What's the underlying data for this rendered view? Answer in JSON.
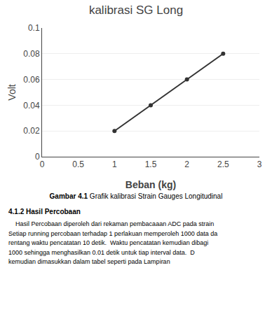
{
  "chart_data": {
    "type": "line",
    "title": "kalibrasi SG Long",
    "xlabel": "Beban (kg)",
    "ylabel": "Volt",
    "x": [
      1.0,
      1.5,
      2.0,
      2.5
    ],
    "values": [
      0.02,
      0.04,
      0.06,
      0.08
    ],
    "color": "#333333",
    "marker": "circle",
    "xlim": [
      0,
      3
    ],
    "xticks": [
      0,
      0.5,
      1,
      1.5,
      2,
      2.5,
      3
    ],
    "ylim": [
      0,
      0.1
    ],
    "yticks": [
      0,
      0.02,
      0.04,
      0.06,
      0.08,
      0.1
    ],
    "grid": "y",
    "annotations": [
      "Gambar 4.1",
      " Grafik kalibrasi Strain Gauges Longitudinal",
      "4.1.2 Hasil Percobaan",
      "    Hasil Percobaan diperoleh dari rekaman pembacaaan ADC pada strain",
      "Setiap running percobaan terhadap 1 perlakuan memperoleh 1000 data da",
      "rentang waktu pencatatan 10 detik.  Waktu pencatatan kemudian dibagi",
      "1000 sehingga menghasilkan 0.01 detik untuk tiap interval data.  D",
      "kemudian dimasukkan dalam tabel seperti pada Lampiran"
    ]
  }
}
